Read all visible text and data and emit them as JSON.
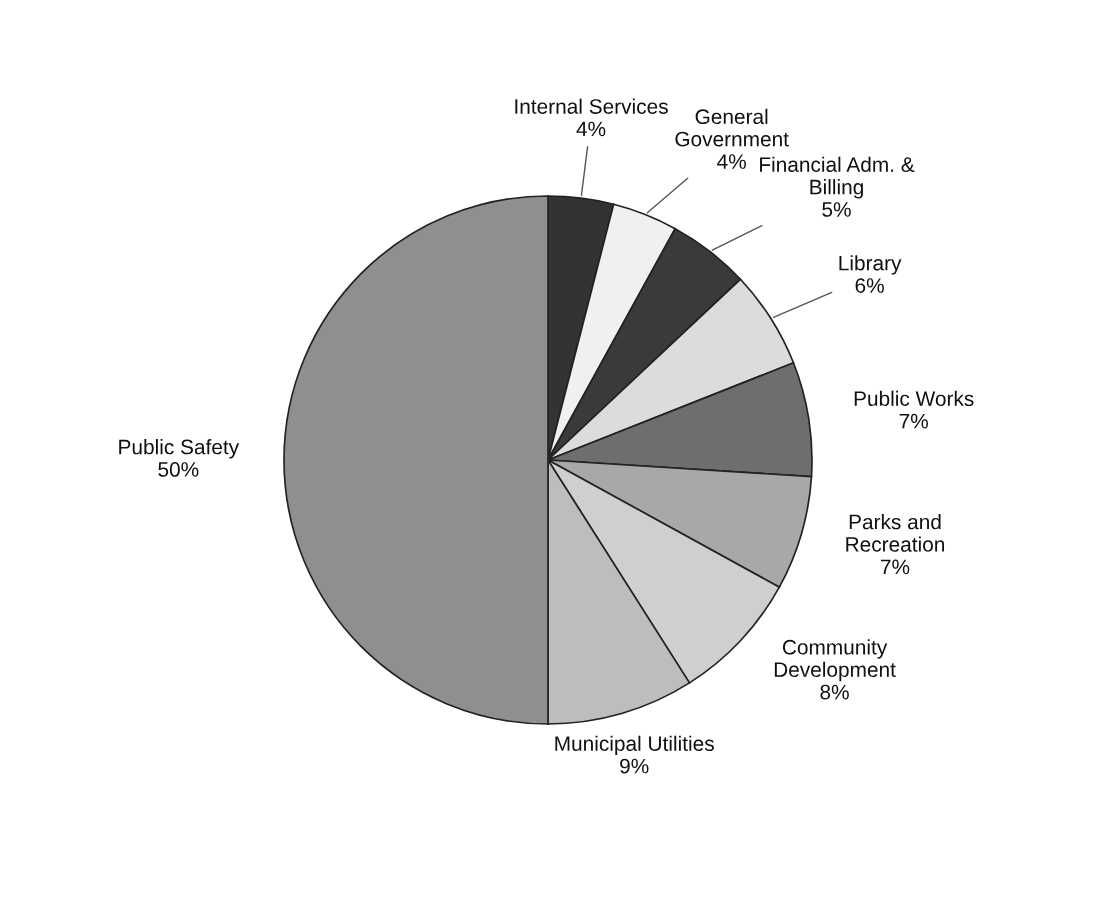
{
  "chart_data": {
    "type": "pie",
    "categories": [
      "Internal Services",
      "General\nGovernment",
      "Financial Adm. &\nBilling",
      "Library",
      "Public Works",
      "Parks and\nRecreation",
      "Community\nDevelopment",
      "Municipal Utilities",
      "Public Safety"
    ],
    "values": [
      4,
      4,
      5,
      6,
      7,
      7,
      8,
      9,
      50
    ],
    "value_labels": [
      "4%",
      "4%",
      "5%",
      "6%",
      "7%",
      "7%",
      "8%",
      "9%",
      "50%"
    ],
    "colors": [
      "#333333",
      "#f0f0f0",
      "#3a3a3a",
      "#dcdcdc",
      "#6e6e6e",
      "#a8a8a8",
      "#cfcfcf",
      "#bdbdbd",
      "#8f8f8f"
    ]
  }
}
